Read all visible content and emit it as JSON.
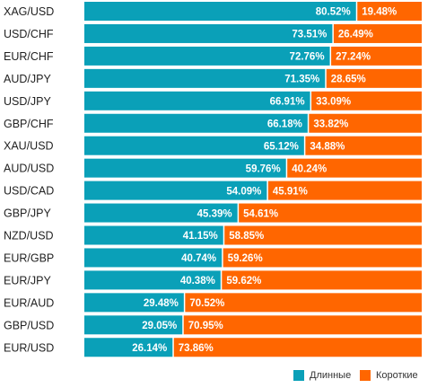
{
  "chart_data": {
    "type": "bar",
    "stacked": true,
    "orientation": "horizontal",
    "categories": [
      "XAG/USD",
      "USD/CHF",
      "EUR/CHF",
      "AUD/JPY",
      "USD/JPY",
      "GBP/CHF",
      "XAU/USD",
      "AUD/USD",
      "USD/CAD",
      "GBP/JPY",
      "NZD/USD",
      "EUR/GBP",
      "EUR/JPY",
      "EUR/AUD",
      "GBP/USD",
      "EUR/USD"
    ],
    "series": [
      {
        "name": "Длинные",
        "color": "#0aa0b8",
        "values": [
          80.52,
          73.51,
          72.76,
          71.35,
          66.91,
          66.18,
          65.12,
          59.76,
          54.09,
          45.39,
          41.15,
          40.74,
          40.38,
          29.48,
          29.05,
          26.14
        ],
        "labels": [
          "80.52%",
          "73.51%",
          "72.76%",
          "71.35%",
          "66.91%",
          "66.18%",
          "65.12%",
          "59.76%",
          "54.09%",
          "45.39%",
          "41.15%",
          "40.74%",
          "40.38%",
          "29.48%",
          "29.05%",
          "26.14%"
        ]
      },
      {
        "name": "Короткие",
        "color": "#ff6600",
        "values": [
          19.48,
          26.49,
          27.24,
          28.65,
          33.09,
          33.82,
          34.88,
          40.24,
          45.91,
          54.61,
          58.85,
          59.26,
          59.62,
          70.52,
          70.95,
          73.86
        ],
        "labels": [
          "19.48%",
          "26.49%",
          "27.24%",
          "28.65%",
          "33.09%",
          "33.82%",
          "34.88%",
          "40.24%",
          "45.91%",
          "54.61%",
          "58.85%",
          "59.26%",
          "59.62%",
          "70.52%",
          "70.95%",
          "73.86%"
        ]
      }
    ],
    "xlim": [
      0,
      100
    ],
    "grid": false,
    "legend_position": "bottom-right"
  }
}
